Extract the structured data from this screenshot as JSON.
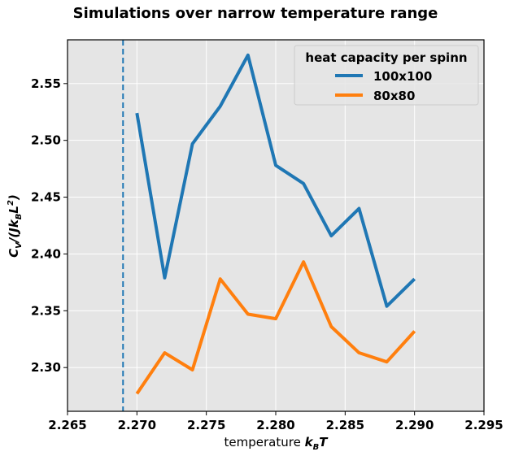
{
  "chart_data": {
    "type": "line",
    "title": "Simulations over narrow temperature range",
    "xlabel_prefix": "temperature ",
    "xlabel_math": "k",
    "xlabel_math_sub": "B",
    "xlabel_math_tail": "T",
    "ylabel": "C_V/(J k_B L^2)",
    "xlim": [
      2.265,
      2.295
    ],
    "ylim": [
      2.2615,
      2.5885
    ],
    "xticks": [
      2.265,
      2.27,
      2.275,
      2.28,
      2.285,
      2.29,
      2.295
    ],
    "xtick_labels": [
      "2.265",
      "2.270",
      "2.275",
      "2.280",
      "2.285",
      "2.290",
      "2.295"
    ],
    "yticks": [
      2.3,
      2.35,
      2.4,
      2.45,
      2.5,
      2.55
    ],
    "ytick_labels": [
      "2.30",
      "2.35",
      "2.40",
      "2.45",
      "2.50",
      "2.55"
    ],
    "grid": true,
    "vline": {
      "x": 2.269,
      "style": "dashed",
      "color": "#1f77b4"
    },
    "legend": {
      "title": "heat capacity per spinn",
      "placement": "upper right"
    },
    "x": [
      2.27,
      2.272,
      2.274,
      2.276,
      2.278,
      2.28,
      2.282,
      2.284,
      2.286,
      2.288,
      2.29
    ],
    "series": [
      {
        "name": "100x100",
        "color": "#1f77b4",
        "values": [
          2.524,
          2.379,
          2.497,
          2.53,
          2.575,
          2.478,
          2.462,
          2.416,
          2.44,
          2.354,
          2.378
        ]
      },
      {
        "name": "80x80",
        "color": "#ff7f0e",
        "values": [
          2.277,
          2.313,
          2.298,
          2.378,
          2.347,
          2.343,
          2.393,
          2.336,
          2.313,
          2.305,
          2.332
        ]
      }
    ]
  }
}
